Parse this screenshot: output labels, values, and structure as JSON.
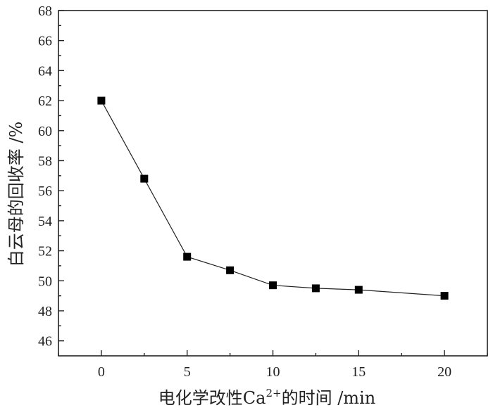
{
  "chart_data": {
    "type": "line",
    "xlabel": "电化学改性Ca",
    "xlabel_sup": "2+",
    "xlabel_suffix": "的时间 /min",
    "ylabel": "白云母的回收率 /%",
    "xlim": [
      -2.5,
      22.5
    ],
    "ylim": [
      45,
      68
    ],
    "x_ticks": [
      0,
      5,
      10,
      15,
      20
    ],
    "y_ticks": [
      46,
      48,
      50,
      52,
      54,
      56,
      58,
      60,
      62,
      64,
      66,
      68
    ],
    "grid": false,
    "series": [
      {
        "marker": "square",
        "color": "#000000",
        "x": [
          0,
          2.5,
          5,
          7.5,
          10,
          12.5,
          15,
          20
        ],
        "y": [
          62.0,
          56.8,
          51.6,
          50.7,
          49.7,
          49.5,
          49.4,
          49.0
        ]
      }
    ]
  }
}
